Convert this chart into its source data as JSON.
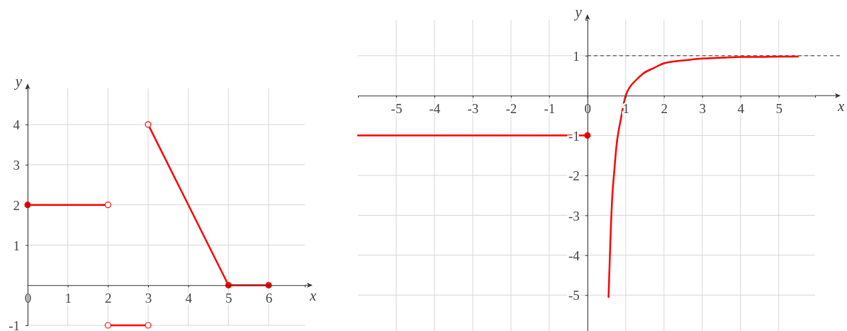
{
  "chart_data": [
    {
      "type": "line",
      "xlabel": "x",
      "ylabel": "y",
      "xlim": [
        0,
        6.9
      ],
      "ylim": [
        -1,
        4.9
      ],
      "xticks": [
        0,
        1,
        2,
        3,
        4,
        5,
        6
      ],
      "yticks": [
        -1,
        1,
        2,
        3,
        4
      ],
      "grid": true,
      "series": [
        {
          "color": "#ff0000",
          "x": [
            0,
            2
          ],
          "values": [
            2,
            2
          ]
        },
        {
          "color": "#ff0000",
          "x": [
            2,
            3
          ],
          "values": [
            -1,
            -1
          ]
        },
        {
          "color": "#ff0000",
          "x": [
            3,
            5
          ],
          "values": [
            4,
            0
          ]
        },
        {
          "color": "#ff0000",
          "x": [
            5,
            6
          ],
          "values": [
            0,
            0
          ]
        },
        {
          "type": "scatter",
          "marker": "circle",
          "color": "#ff0000",
          "x": [
            0,
            5,
            6
          ],
          "values": [
            2,
            0,
            0
          ]
        },
        {
          "type": "scatter",
          "marker": "circle",
          "color": "#ffffff",
          "x": [
            2,
            2,
            3,
            3
          ],
          "values": [
            2,
            -1,
            -1,
            4
          ]
        }
      ]
    },
    {
      "type": "line",
      "xlabel": "x",
      "ylabel": "y",
      "xlim": [
        -6,
        5.95
      ],
      "ylim": [
        -5.9,
        1.9
      ],
      "xticks": [
        -5,
        -4,
        -3,
        -2,
        -1,
        0,
        1,
        2,
        3,
        4,
        5
      ],
      "yticks": [
        -5,
        -4,
        -3,
        -2,
        -1,
        1
      ],
      "grid": true,
      "ref_lines": [
        {
          "axis": "y",
          "value": 1,
          "line_style": "dashed",
          "color": "#333333"
        }
      ],
      "series": [
        {
          "color": "#ff0000",
          "x": [
            -6,
            0
          ],
          "values": [
            -1,
            -1
          ]
        },
        {
          "type": "scatter",
          "marker": "circle",
          "color": "#ff0000",
          "x": [
            0
          ],
          "values": [
            -1
          ]
        },
        {
          "color": "#ff0000",
          "x": [
            0.55,
            0.6,
            0.65,
            0.7,
            0.76,
            0.82,
            0.87,
            0.93,
            1,
            1.1,
            1.26,
            1.45,
            1.73,
            2,
            2.5,
            3,
            3.5,
            4,
            4.5,
            5,
            5.5
          ],
          "values": [
            -5.05,
            -3.6,
            -2.5,
            -1.9,
            -1.24,
            -0.85,
            -0.6,
            -0.28,
            0,
            0.2,
            0.38,
            0.55,
            0.69,
            0.81,
            0.88,
            0.93,
            0.95,
            0.97,
            0.97,
            0.98,
            0.98
          ]
        }
      ]
    }
  ]
}
